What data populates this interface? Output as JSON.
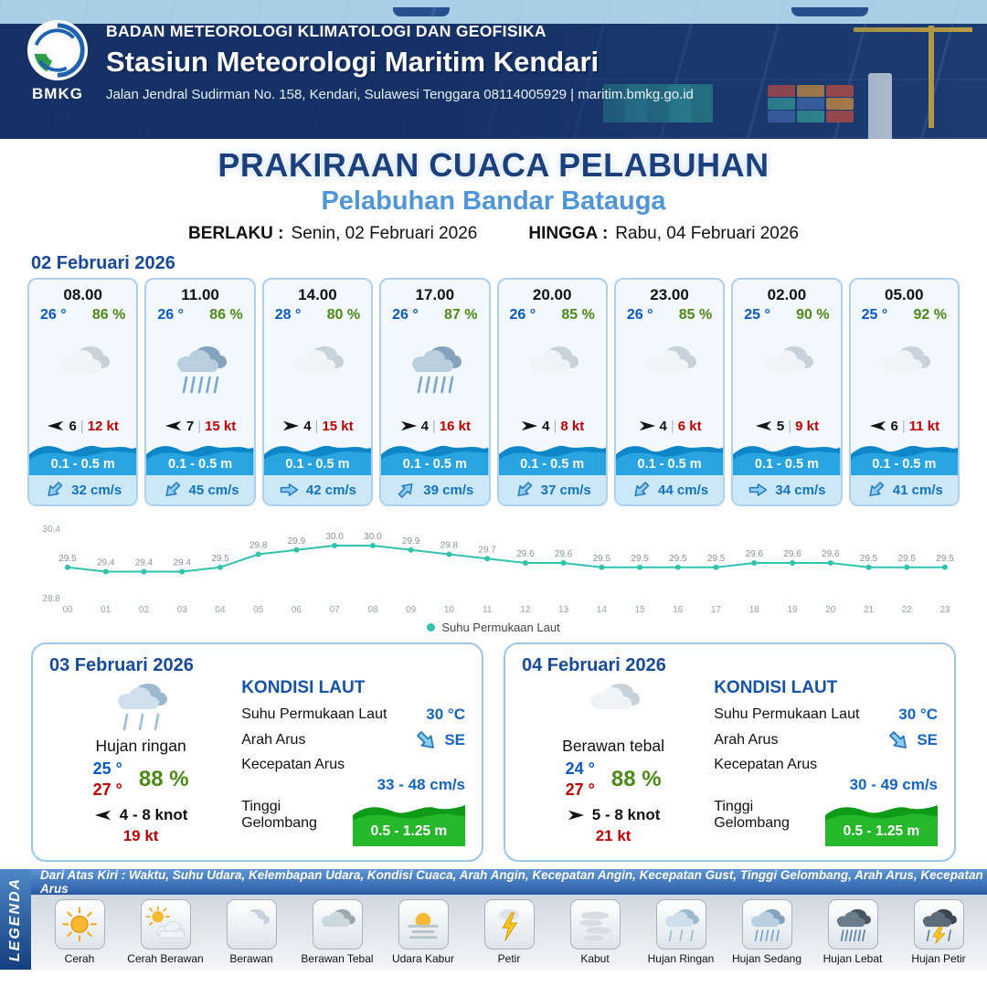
{
  "header": {
    "org": "BADAN METEOROLOGI KLIMATOLOGI DAN GEOFISIKA",
    "station": "Stasiun Meteorologi Maritim Kendari",
    "address": "Jalan Jendral Sudirman No. 158, Kendari, Sulawesi Tenggara  08114005929 | maritim.bmkg.go.id",
    "logo_text": "BMKG"
  },
  "title": {
    "main": "PRAKIRAAN CUACA PELABUHAN",
    "port": "Pelabuhan Bandar Batauga",
    "berlaku_label": "BERLAKU :",
    "berlaku_value": "Senin, 02 Februari 2026",
    "hingga_label": "HINGGA :",
    "hingga_value": "Rabu, 04 Februari 2026"
  },
  "hourly": {
    "date": "02 Februari 2026",
    "divider": "|",
    "cards": [
      {
        "time": "08.00",
        "temp": "26 °",
        "rh": "86 %",
        "icon": "cloud",
        "wind_dir": "W",
        "wind": "6",
        "gust": "12 kt",
        "wave": "0.1 - 0.5 m",
        "cur_dir": "SW",
        "current": "32 cm/s"
      },
      {
        "time": "11.00",
        "temp": "26 °",
        "rh": "86 %",
        "icon": "rain-med",
        "wind_dir": "W",
        "wind": "7",
        "gust": "15 kt",
        "wave": "0.1 - 0.5 m",
        "cur_dir": "SW",
        "current": "45 cm/s"
      },
      {
        "time": "14.00",
        "temp": "28 °",
        "rh": "80 %",
        "icon": "cloud",
        "wind_dir": "E",
        "wind": "4",
        "gust": "15 kt",
        "wave": "0.1 - 0.5 m",
        "cur_dir": "E",
        "current": "42 cm/s"
      },
      {
        "time": "17.00",
        "temp": "26 °",
        "rh": "87 %",
        "icon": "rain-med",
        "wind_dir": "E",
        "wind": "4",
        "gust": "16 kt",
        "wave": "0.1 - 0.5 m",
        "cur_dir": "NE",
        "current": "39 cm/s"
      },
      {
        "time": "20.00",
        "temp": "26 °",
        "rh": "85 %",
        "icon": "cloud",
        "wind_dir": "E",
        "wind": "4",
        "gust": "8 kt",
        "wave": "0.1 - 0.5 m",
        "cur_dir": "SW",
        "current": "37 cm/s"
      },
      {
        "time": "23.00",
        "temp": "26 °",
        "rh": "85 %",
        "icon": "cloud",
        "wind_dir": "E",
        "wind": "4",
        "gust": "6 kt",
        "wave": "0.1 - 0.5 m",
        "cur_dir": "SW",
        "current": "44 cm/s"
      },
      {
        "time": "02.00",
        "temp": "25 °",
        "rh": "90 %",
        "icon": "cloud",
        "wind_dir": "W",
        "wind": "5",
        "gust": "9 kt",
        "wave": "0.1 - 0.5 m",
        "cur_dir": "E",
        "current": "34 cm/s"
      },
      {
        "time": "05.00",
        "temp": "25 °",
        "rh": "92 %",
        "icon": "cloud",
        "wind_dir": "W",
        "wind": "6",
        "gust": "11 kt",
        "wave": "0.1 - 0.5 m",
        "cur_dir": "SW",
        "current": "41 cm/s"
      }
    ]
  },
  "chart_data": {
    "type": "line",
    "series_name": "Suhu Permukaan Laut",
    "x": [
      "00",
      "01",
      "02",
      "03",
      "04",
      "05",
      "06",
      "07",
      "08",
      "09",
      "10",
      "11",
      "12",
      "13",
      "14",
      "15",
      "16",
      "17",
      "18",
      "19",
      "20",
      "21",
      "22",
      "23"
    ],
    "values": [
      29.5,
      29.4,
      29.4,
      29.4,
      29.5,
      29.8,
      29.9,
      30.0,
      30.0,
      29.9,
      29.8,
      29.7,
      29.6,
      29.6,
      29.5,
      29.5,
      29.5,
      29.5,
      29.6,
      29.6,
      29.6,
      29.5,
      29.5,
      29.5
    ],
    "ylim": [
      28.8,
      30.4
    ],
    "line_color": "#2fc3ad",
    "legend_position": "bottom",
    "grid": false
  },
  "daily": [
    {
      "date": "03 Februari 2026",
      "icon": "rain-light",
      "condition": "Hujan ringan",
      "temp_min": "25 °",
      "temp_max": "27 °",
      "rh": "88 %",
      "wind_dir": "W",
      "wind": "4  - 8 knot",
      "gust": "19 kt",
      "sea_heading": "KONDISI LAUT",
      "sst_label": "Suhu Permukaan Laut",
      "sst": "30 °C",
      "arah_label": "Arah Arus",
      "arah_dir": "SE",
      "arah": "SE",
      "kecepatan_label": "Kecepatan Arus",
      "kecepatan": "33 - 48 cm/s",
      "gelombang_label": "Tinggi Gelombang",
      "gelombang": "0.5 - 1.25 m"
    },
    {
      "date": "04 Februari 2026",
      "icon": "cloud",
      "condition": "Berawan tebal",
      "temp_min": "24 °",
      "temp_max": "27 °",
      "rh": "88 %",
      "wind_dir": "E",
      "wind": "5  - 8 knot",
      "gust": "21 kt",
      "sea_heading": "KONDISI LAUT",
      "sst_label": "Suhu Permukaan Laut",
      "sst": "30 °C",
      "arah_label": "Arah Arus",
      "arah_dir": "SE",
      "arah": "SE",
      "kecepatan_label": "Kecepatan Arus",
      "kecepatan": "30 - 49 cm/s",
      "gelombang_label": "Tinggi Gelombang",
      "gelombang": "0.5 - 1.25 m"
    }
  ],
  "legend": {
    "vertical": "LEGENDA",
    "strip": "Dari Atas Kiri : Waktu, Suhu Udara, Kelembapan Udara, Kondisi Cuaca, Arah Angin, Kecepatan Angin, Kecepatan Gust, Tinggi Gelombang, Arah Arus, Kecepatan Arus",
    "items": [
      {
        "label": "Cerah",
        "icon": "sun"
      },
      {
        "label": "Cerah Berawan",
        "icon": "sun-cloud"
      },
      {
        "label": "Berawan",
        "icon": "cloud"
      },
      {
        "label": "Berawan Tebal",
        "icon": "cloud-dark"
      },
      {
        "label": "Udara Kabur",
        "icon": "haze"
      },
      {
        "label": "Petir",
        "icon": "lightning"
      },
      {
        "label": "Kabut",
        "icon": "fog"
      },
      {
        "label": "Hujan Ringan",
        "icon": "rain-light"
      },
      {
        "label": "Hujan Sedang",
        "icon": "rain-med"
      },
      {
        "label": "Hujan Lebat",
        "icon": "rain-heavy"
      },
      {
        "label": "Hujan Petir",
        "icon": "storm"
      }
    ]
  },
  "colors": {
    "navy": "#16356b",
    "title_blue": "#1c3f7d",
    "port_blue": "#4f96d9",
    "temp_blue": "#0a58c8",
    "rh_green": "#4c8a17",
    "gust_red": "#c00000",
    "wave_blue": "#1498d8",
    "current_blue": "#1273be",
    "wave_green": "#17a317",
    "chart_teal": "#2fc3ad"
  }
}
